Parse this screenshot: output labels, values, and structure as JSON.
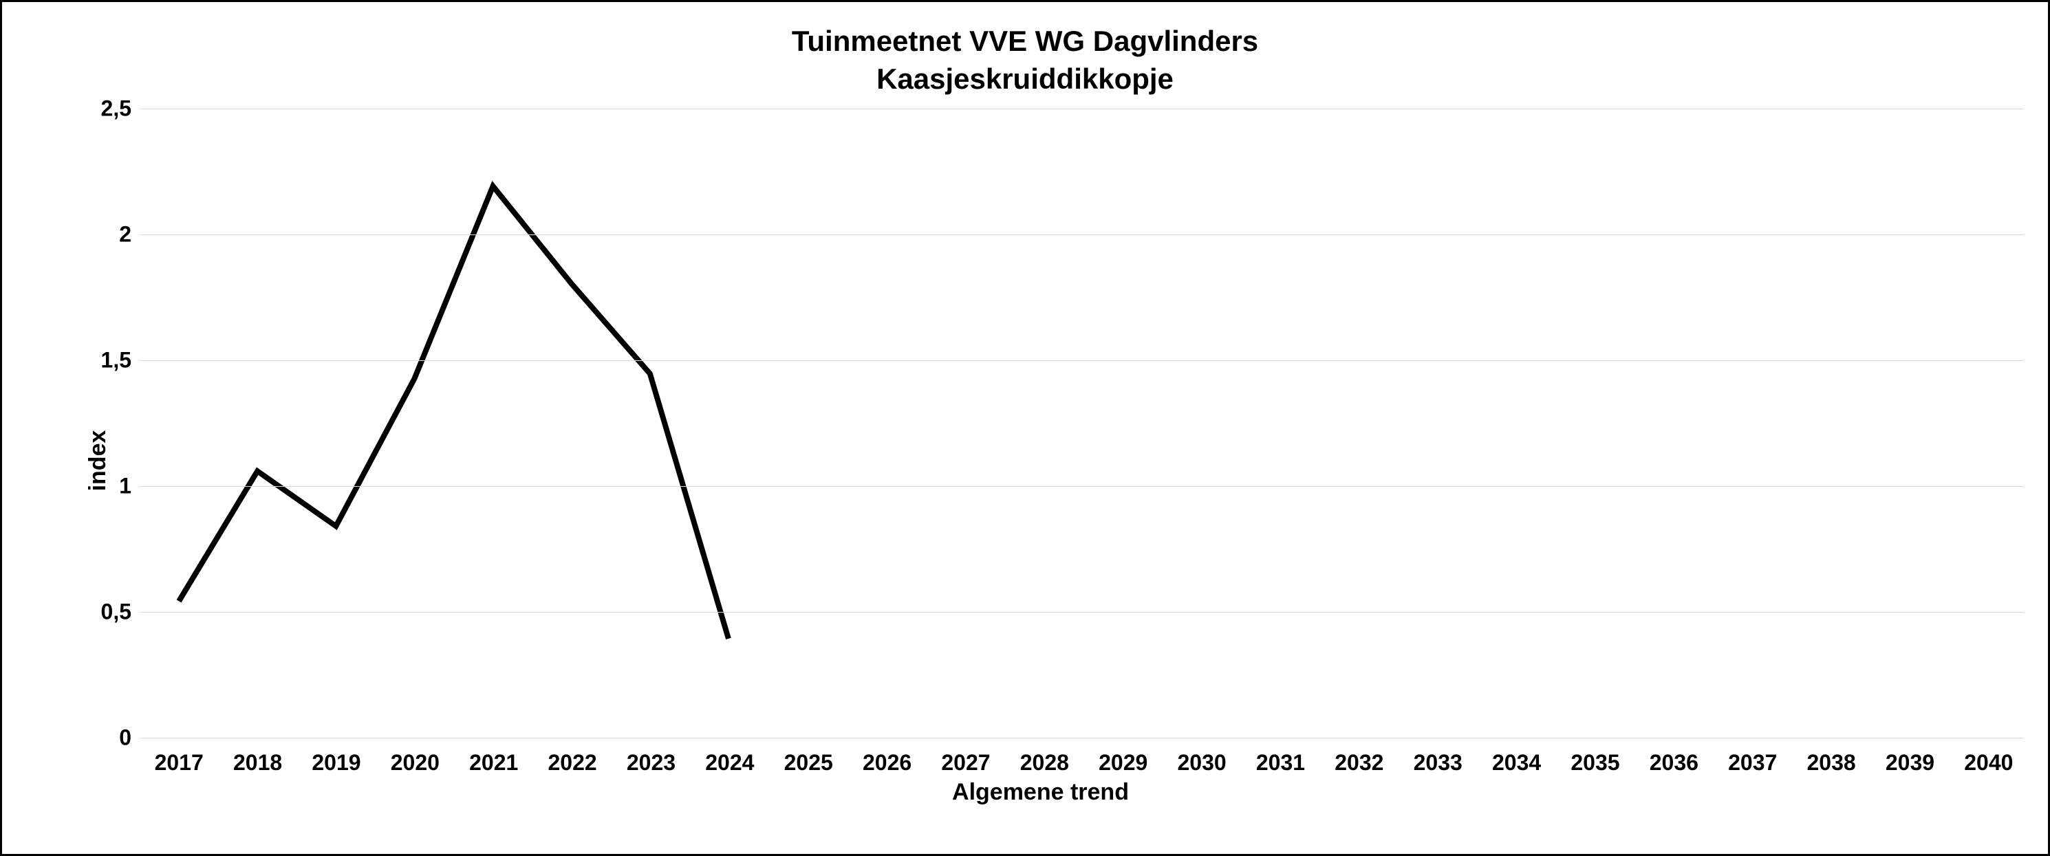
{
  "chart": {
    "type": "line",
    "title_line1": "Tuinmeetnet VVE WG Dagvlinders",
    "title_line2": "Kaasjeskruiddikkopje",
    "title_fontsize": 42,
    "title_fontweight": "bold",
    "y_axis_label": "index",
    "x_axis_label": "Algemene trend",
    "axis_label_fontsize": 34,
    "axis_label_fontweight": "bold",
    "tick_label_fontsize": 32,
    "tick_label_fontweight": "bold",
    "x_categories": [
      "2017",
      "2018",
      "2019",
      "2020",
      "2021",
      "2022",
      "2023",
      "2024",
      "2025",
      "2026",
      "2027",
      "2028",
      "2029",
      "2030",
      "2031",
      "2032",
      "2033",
      "2034",
      "2035",
      "2036",
      "2037",
      "2038",
      "2039",
      "2040"
    ],
    "y_ticks": [
      0,
      0.5,
      1,
      1.5,
      2,
      2.5
    ],
    "y_tick_labels": [
      "0",
      "0,5",
      "1",
      "1,5",
      "2",
      "2,5"
    ],
    "ylim": [
      0,
      2.5
    ],
    "series": {
      "values": [
        0.53,
        1.05,
        0.83,
        1.42,
        2.19,
        1.8,
        1.44,
        0.38
      ],
      "color": "#000000",
      "line_width": 8
    },
    "background_color": "#ffffff",
    "grid_color": "#d9d9d9",
    "border_color": "#000000",
    "border_width": 3
  }
}
